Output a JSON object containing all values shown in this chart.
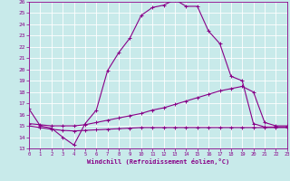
{
  "xlabel": "Windchill (Refroidissement éolien,°C)",
  "bg_color": "#c8eaea",
  "line_color": "#880088",
  "grid_color": "#ffffff",
  "ylim": [
    13,
    26
  ],
  "xlim": [
    0,
    23
  ],
  "yticks": [
    13,
    14,
    15,
    16,
    17,
    18,
    19,
    20,
    21,
    22,
    23,
    24,
    25,
    26
  ],
  "xticks": [
    0,
    1,
    2,
    3,
    4,
    5,
    6,
    7,
    8,
    9,
    10,
    11,
    12,
    13,
    14,
    15,
    16,
    17,
    18,
    19,
    20,
    21,
    22,
    23
  ],
  "curve1_x": [
    0,
    1,
    2,
    3,
    4,
    5,
    6,
    7,
    8,
    9,
    10,
    11,
    12,
    13,
    14,
    15,
    16,
    17,
    18,
    19,
    20,
    21,
    22,
    23
  ],
  "curve1_y": [
    16.5,
    15.0,
    14.8,
    14.0,
    13.3,
    15.2,
    16.4,
    19.9,
    21.5,
    22.8,
    24.8,
    25.5,
    25.7,
    26.2,
    25.6,
    25.6,
    23.4,
    22.3,
    19.4,
    19.0,
    15.2,
    14.9,
    14.9,
    14.9
  ],
  "curve2_x": [
    0,
    1,
    2,
    3,
    4,
    5,
    6,
    7,
    8,
    9,
    10,
    11,
    12,
    13,
    14,
    15,
    16,
    17,
    18,
    19,
    20,
    21,
    22,
    23
  ],
  "curve2_y": [
    15.2,
    15.1,
    15.0,
    15.0,
    15.0,
    15.1,
    15.3,
    15.5,
    15.7,
    15.9,
    16.1,
    16.4,
    16.6,
    16.9,
    17.2,
    17.5,
    17.8,
    18.1,
    18.3,
    18.5,
    18.0,
    15.3,
    15.0,
    15.0
  ],
  "curve3_x": [
    0,
    1,
    2,
    3,
    4,
    5,
    6,
    7,
    8,
    9,
    10,
    11,
    12,
    13,
    14,
    15,
    16,
    17,
    18,
    19,
    20,
    21,
    22,
    23
  ],
  "curve3_y": [
    15.0,
    14.85,
    14.7,
    14.6,
    14.55,
    14.6,
    14.65,
    14.7,
    14.75,
    14.8,
    14.85,
    14.85,
    14.85,
    14.85,
    14.85,
    14.85,
    14.85,
    14.85,
    14.85,
    14.85,
    14.85,
    14.85,
    14.85,
    14.85
  ]
}
